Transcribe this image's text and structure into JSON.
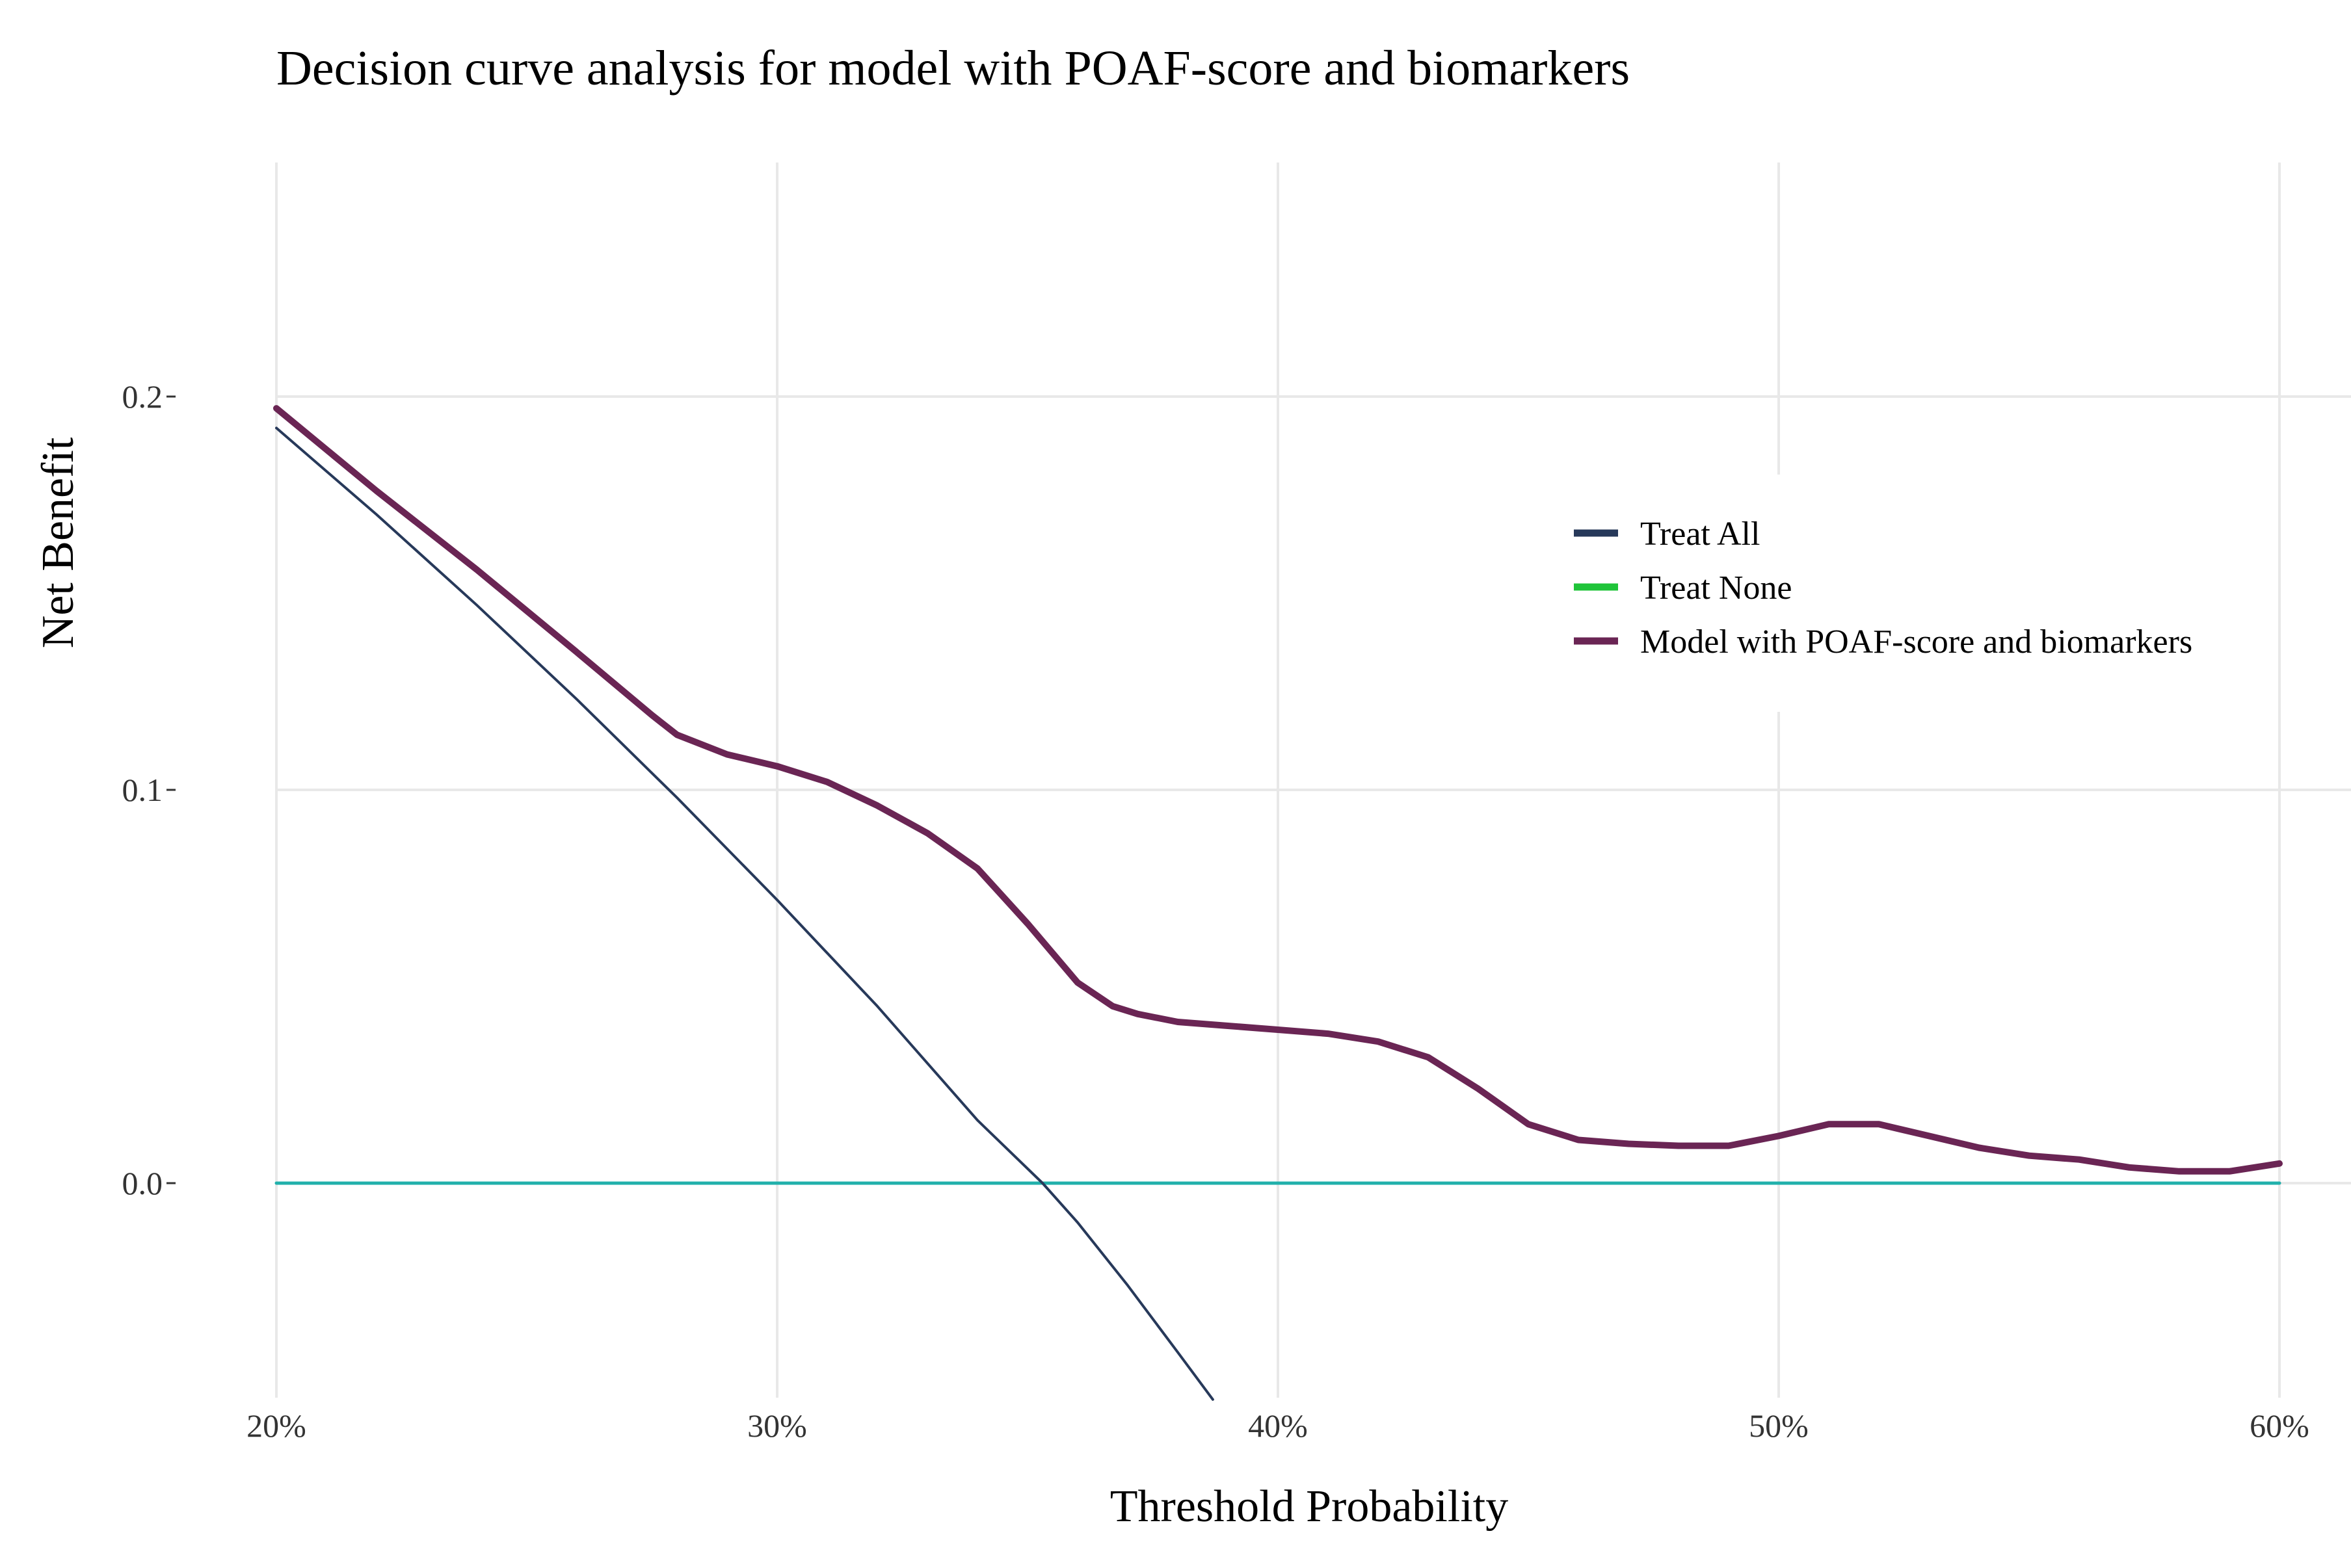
{
  "chart_data": {
    "type": "line",
    "title": "Decision curve analysis for model with POAF-score and biomarkers",
    "xlabel": "Threshold Probability",
    "ylabel": "Net Benefit",
    "xlim": [
      0.2,
      0.6
    ],
    "ylim": [
      -0.055,
      0.26
    ],
    "x_ticks": [
      {
        "value": 0.2,
        "label": "20%"
      },
      {
        "value": 0.3,
        "label": "30%"
      },
      {
        "value": 0.4,
        "label": "40%"
      },
      {
        "value": 0.5,
        "label": "50%"
      },
      {
        "value": 0.6,
        "label": "60%"
      }
    ],
    "y_ticks": [
      {
        "value": 0.0,
        "label": "0.0"
      },
      {
        "value": 0.1,
        "label": "0.1"
      },
      {
        "value": 0.2,
        "label": "0.2"
      }
    ],
    "grid": true,
    "legend_position": "upper-right",
    "series": [
      {
        "name": "Treat All",
        "color": "#27395a",
        "width": 4,
        "x": [
          0.2,
          0.22,
          0.24,
          0.26,
          0.28,
          0.3,
          0.32,
          0.34,
          0.353,
          0.36,
          0.37,
          0.38,
          0.387
        ],
        "y": [
          0.192,
          0.17,
          0.147,
          0.123,
          0.098,
          0.072,
          0.045,
          0.016,
          0.0,
          -0.01,
          -0.026,
          -0.043,
          -0.055
        ]
      },
      {
        "name": "Treat None",
        "color": "#21b0ab",
        "legend_color": "#1fc439",
        "width": 5,
        "x": [
          0.2,
          0.6
        ],
        "y": [
          0.0,
          0.0
        ]
      },
      {
        "name": "Model with POAF-score and biomarkers",
        "color": "#6a2554",
        "width": 10,
        "x": [
          0.2,
          0.22,
          0.24,
          0.26,
          0.275,
          0.28,
          0.29,
          0.3,
          0.31,
          0.32,
          0.33,
          0.34,
          0.35,
          0.36,
          0.367,
          0.372,
          0.38,
          0.39,
          0.4,
          0.41,
          0.42,
          0.43,
          0.44,
          0.45,
          0.46,
          0.47,
          0.48,
          0.49,
          0.5,
          0.51,
          0.52,
          0.53,
          0.54,
          0.55,
          0.56,
          0.57,
          0.58,
          0.59,
          0.6
        ],
        "y": [
          0.197,
          0.176,
          0.156,
          0.135,
          0.119,
          0.114,
          0.109,
          0.106,
          0.102,
          0.096,
          0.089,
          0.08,
          0.066,
          0.051,
          0.045,
          0.043,
          0.041,
          0.04,
          0.039,
          0.038,
          0.036,
          0.032,
          0.024,
          0.015,
          0.011,
          0.01,
          0.0095,
          0.0095,
          0.012,
          0.015,
          0.015,
          0.012,
          0.009,
          0.007,
          0.006,
          0.004,
          0.003,
          0.003,
          0.005
        ]
      }
    ],
    "legend_order": [
      "Treat All",
      "Treat None",
      "Model with POAF-score and biomarkers"
    ]
  }
}
